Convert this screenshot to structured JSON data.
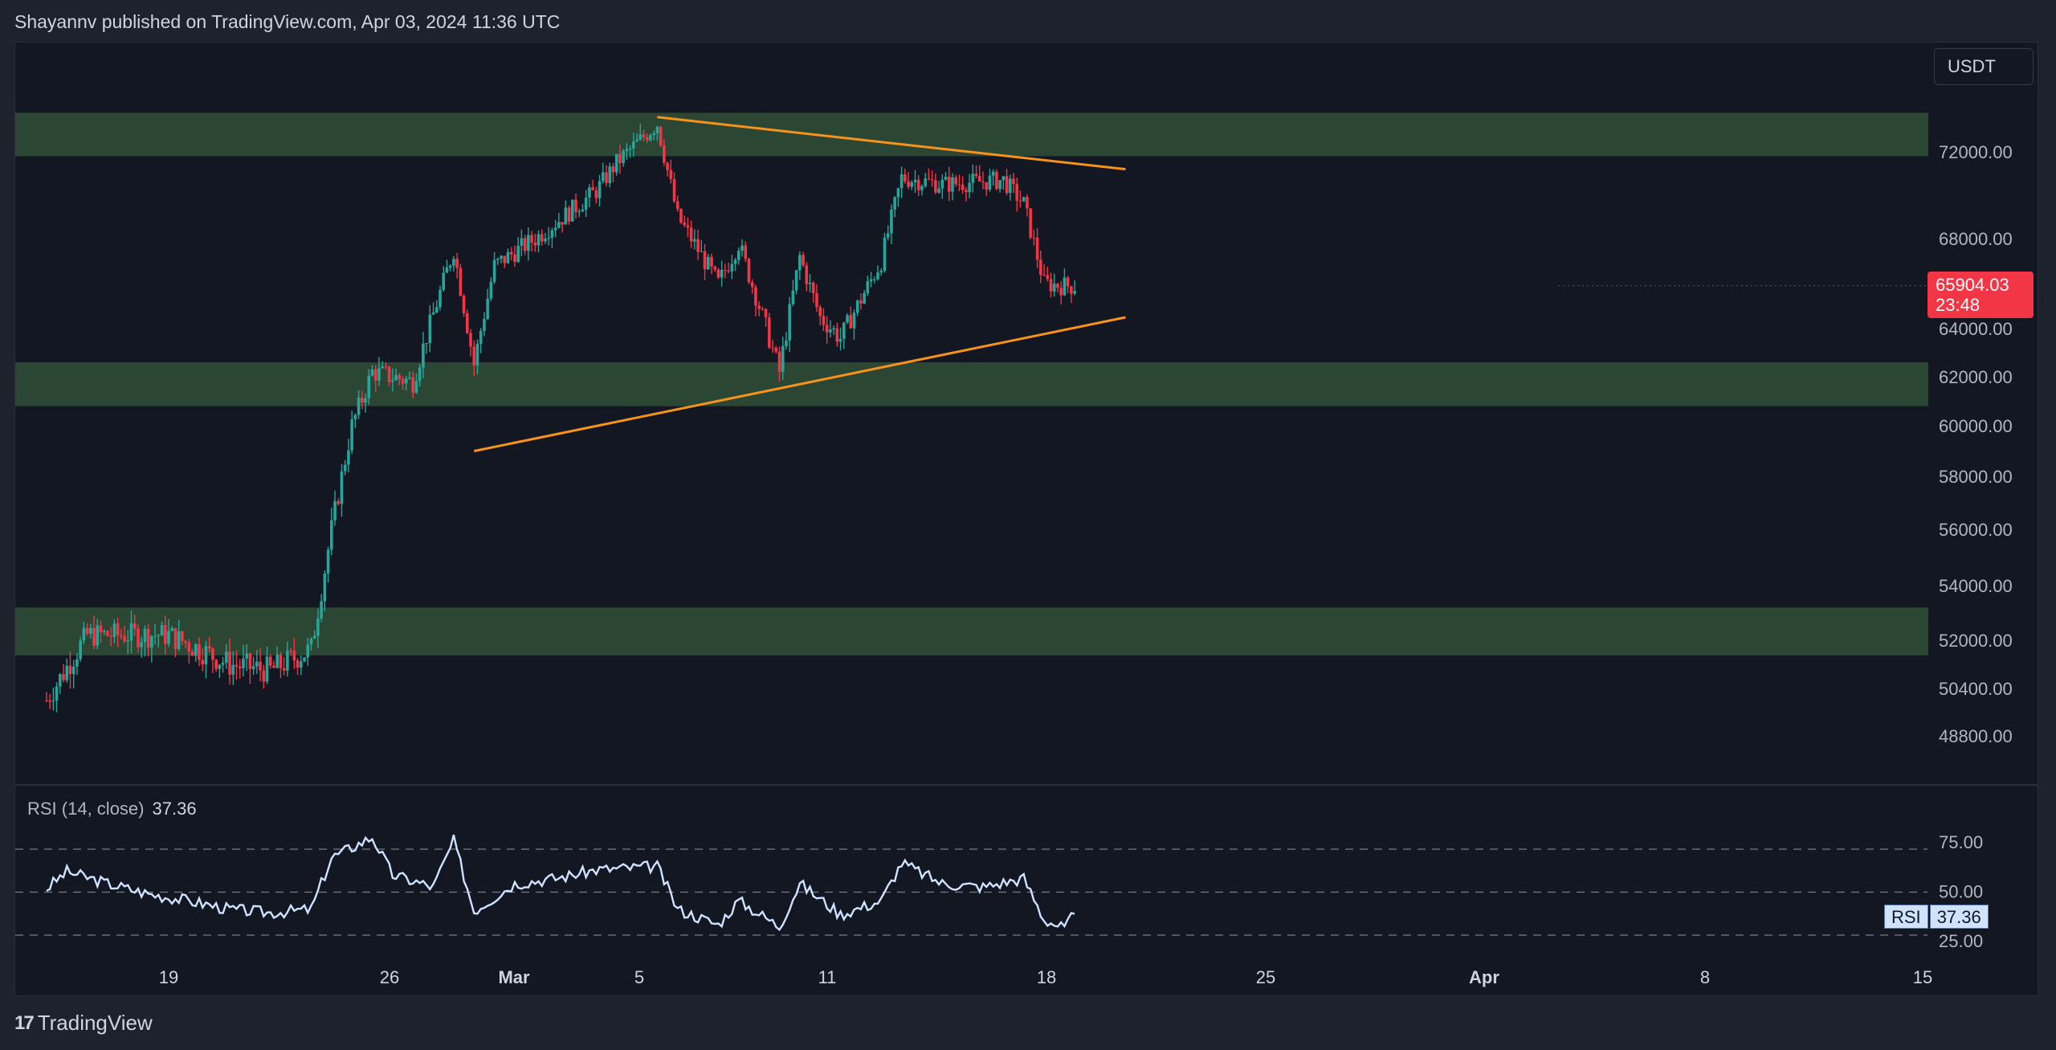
{
  "header": {
    "publisher_text": "Shayannv published on TradingView.com, Apr 03, 2024 11:36 UTC"
  },
  "toolbar": {
    "currency": "USDT"
  },
  "price_label": {
    "price": "65904.03",
    "countdown": "23:48"
  },
  "rsi": {
    "title": "RSI (14, close)",
    "value": "37.36",
    "tag_label": "RSI",
    "tag_value": "37.36"
  },
  "footer": {
    "brand": "TradingView",
    "logo_glyph": "17"
  },
  "colors": {
    "bull": "#26a69a",
    "bear": "#f23645",
    "zone": "#2c4a36",
    "trendline": "#f7931a",
    "rsi_line": "#cfe2ff"
  },
  "chart_data": {
    "type": "candlestick",
    "symbol_quote": "USDT",
    "y_ticks": [
      "72000.00",
      "68000.00",
      "64000.00",
      "62000.00",
      "60000.00",
      "58000.00",
      "56000.00",
      "54000.00",
      "52000.00",
      "50400.00",
      "48800.00"
    ],
    "y_tick_values": [
      72000,
      68000,
      64000,
      62000,
      60000,
      58000,
      56000,
      54000,
      52000,
      50400,
      48800
    ],
    "x_ticks": [
      {
        "label": "19",
        "bold": false
      },
      {
        "label": "26",
        "bold": false
      },
      {
        "label": "Mar",
        "bold": true
      },
      {
        "label": "5",
        "bold": false
      },
      {
        "label": "11",
        "bold": false
      },
      {
        "label": "18",
        "bold": false
      },
      {
        "label": "25",
        "bold": false
      },
      {
        "label": "Apr",
        "bold": true
      },
      {
        "label": "8",
        "bold": false
      },
      {
        "label": "15",
        "bold": false
      }
    ],
    "support_resistance_zones": [
      {
        "low": 71800,
        "high": 73800
      },
      {
        "low": 60800,
        "high": 62600
      },
      {
        "low": 51500,
        "high": 53200
      }
    ],
    "trendlines": [
      {
        "label": "upper",
        "from": {
          "date": "2024-03-14",
          "price": 73600
        },
        "to": {
          "date": "2024-04-06",
          "price": 71200
        }
      },
      {
        "label": "lower",
        "from": {
          "date": "2024-03-05",
          "price": 59000
        },
        "to": {
          "date": "2024-04-06",
          "price": 64500
        }
      }
    ],
    "close_path": [
      {
        "date": "2024-02-13",
        "price": 50000
      },
      {
        "date": "2024-02-15",
        "price": 52200
      },
      {
        "date": "2024-02-19",
        "price": 52200
      },
      {
        "date": "2024-02-22",
        "price": 51200
      },
      {
        "date": "2024-02-24",
        "price": 51000
      },
      {
        "date": "2024-02-26",
        "price": 51700
      },
      {
        "date": "2024-02-27",
        "price": 56000
      },
      {
        "date": "2024-02-28",
        "price": 60000
      },
      {
        "date": "2024-02-29",
        "price": 62200
      },
      {
        "date": "2024-03-02",
        "price": 61800
      },
      {
        "date": "2024-03-04",
        "price": 67500
      },
      {
        "date": "2024-03-05",
        "price": 62500
      },
      {
        "date": "2024-03-06",
        "price": 66800
      },
      {
        "date": "2024-03-08",
        "price": 68000
      },
      {
        "date": "2024-03-11",
        "price": 70200
      },
      {
        "date": "2024-03-12",
        "price": 71500
      },
      {
        "date": "2024-03-14",
        "price": 73300
      },
      {
        "date": "2024-03-15",
        "price": 69000
      },
      {
        "date": "2024-03-17",
        "price": 66000
      },
      {
        "date": "2024-03-18",
        "price": 67800
      },
      {
        "date": "2024-03-20",
        "price": 62200
      },
      {
        "date": "2024-03-21",
        "price": 67200
      },
      {
        "date": "2024-03-22",
        "price": 64500
      },
      {
        "date": "2024-03-23",
        "price": 63600
      },
      {
        "date": "2024-03-25",
        "price": 67000
      },
      {
        "date": "2024-03-26",
        "price": 70800
      },
      {
        "date": "2024-03-28",
        "price": 70500
      },
      {
        "date": "2024-03-31",
        "price": 70700
      },
      {
        "date": "2024-04-01",
        "price": 69600
      },
      {
        "date": "2024-04-02",
        "price": 66000
      },
      {
        "date": "2024-04-03",
        "price": 65904
      }
    ],
    "last_price": 65904.03,
    "rsi": {
      "levels": [
        75,
        50,
        25
      ],
      "level_labels": [
        "75.00",
        "50.00",
        "25.00"
      ],
      "current": 37.36,
      "values": [
        {
          "date": "2024-02-13",
          "value": 52
        },
        {
          "date": "2024-02-14",
          "value": 62
        },
        {
          "date": "2024-02-16",
          "value": 55
        },
        {
          "date": "2024-02-18",
          "value": 49
        },
        {
          "date": "2024-02-20",
          "value": 45
        },
        {
          "date": "2024-02-22",
          "value": 40
        },
        {
          "date": "2024-02-24",
          "value": 38
        },
        {
          "date": "2024-02-26",
          "value": 40
        },
        {
          "date": "2024-02-27",
          "value": 70
        },
        {
          "date": "2024-02-29",
          "value": 82
        },
        {
          "date": "2024-03-01",
          "value": 60
        },
        {
          "date": "2024-03-03",
          "value": 53
        },
        {
          "date": "2024-03-04",
          "value": 80
        },
        {
          "date": "2024-03-05",
          "value": 39
        },
        {
          "date": "2024-03-07",
          "value": 55
        },
        {
          "date": "2024-03-09",
          "value": 58
        },
        {
          "date": "2024-03-11",
          "value": 63
        },
        {
          "date": "2024-03-14",
          "value": 65
        },
        {
          "date": "2024-03-15",
          "value": 40
        },
        {
          "date": "2024-03-17",
          "value": 31
        },
        {
          "date": "2024-03-18",
          "value": 45
        },
        {
          "date": "2024-03-20",
          "value": 30
        },
        {
          "date": "2024-03-21",
          "value": 55
        },
        {
          "date": "2024-03-23",
          "value": 37
        },
        {
          "date": "2024-03-25",
          "value": 45
        },
        {
          "date": "2024-03-26",
          "value": 67
        },
        {
          "date": "2024-03-28",
          "value": 55
        },
        {
          "date": "2024-03-30",
          "value": 53
        },
        {
          "date": "2024-04-01",
          "value": 58
        },
        {
          "date": "2024-04-02",
          "value": 34
        },
        {
          "date": "2024-04-03",
          "value": 29
        },
        {
          "date": "2024-04-03T12:00",
          "value": 37.36
        }
      ]
    }
  }
}
